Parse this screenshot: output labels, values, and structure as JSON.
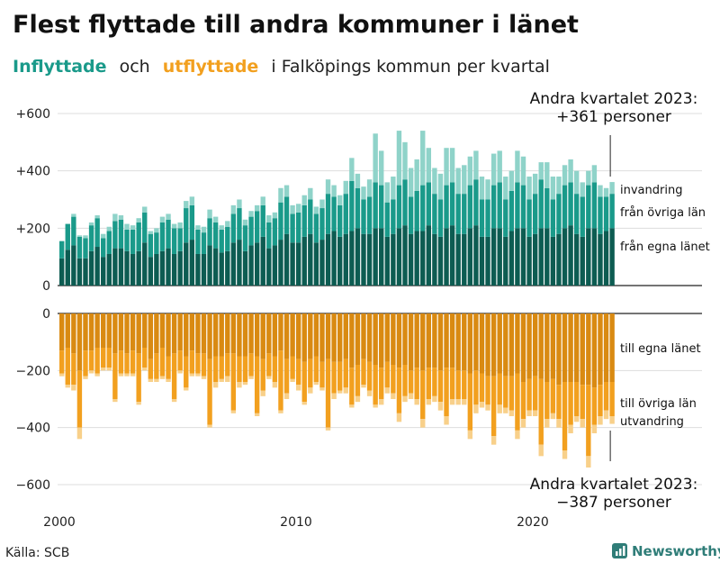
{
  "title": "Flest flyttade till andra kommuner i länet",
  "subtitle": {
    "part1": "Inflyttade",
    "part2": "och",
    "part3": "utflyttade",
    "part4": "i Falköpings kommun per kvartal"
  },
  "source": "Källa: SCB",
  "brand": "Newsworthy",
  "colors": {
    "in_egna": "#0d5c52",
    "in_ovriga": "#1a9a8a",
    "in_invandring": "#8fd3c9",
    "out_egna": "#d98a12",
    "out_ovriga": "#f2a01f",
    "out_utvandring": "#f8d08a",
    "grid": "#dddddd"
  },
  "annotations": {
    "top": {
      "line1": "Andra kvartalet 2023:",
      "line2": "+361 personer"
    },
    "bottom": {
      "line1": "Andra kvartalet 2023:",
      "line2": "−387 personer"
    }
  },
  "chart_data": {
    "type": "bar",
    "x_start": "2000 Q1",
    "x_end": "2023 Q2",
    "x_ticks": [
      "2000",
      "2010",
      "2020"
    ],
    "y_ticks_top": [
      "+600",
      "+400",
      "+200",
      "0"
    ],
    "y_ticks_bottom": [
      "0",
      "−200",
      "−400",
      "−600"
    ],
    "ylim_top": [
      0,
      600
    ],
    "ylim_bottom": [
      -600,
      0
    ],
    "segment_labels": {
      "in_invandring": "invandring",
      "in_ovriga": "från övriga län",
      "in_egna": "från egna länet",
      "out_egna": "till egna länet",
      "out_ovriga": "till övriga län",
      "out_utvandring": "utvandring"
    },
    "inflyttade": {
      "egna": [
        95,
        125,
        140,
        95,
        95,
        120,
        135,
        100,
        110,
        130,
        130,
        120,
        110,
        120,
        150,
        100,
        110,
        120,
        130,
        110,
        120,
        150,
        160,
        110,
        110,
        140,
        130,
        115,
        120,
        150,
        160,
        120,
        140,
        150,
        170,
        130,
        140,
        160,
        180,
        150,
        150,
        170,
        180,
        150,
        160,
        180,
        190,
        170,
        180,
        190,
        200,
        180,
        180,
        200,
        200,
        170,
        180,
        200,
        210,
        180,
        190,
        190,
        210,
        180,
        170,
        200,
        210,
        180,
        180,
        200,
        210,
        170,
        170,
        200,
        200,
        170,
        190,
        200,
        200,
        170,
        180,
        200,
        200,
        170,
        180,
        200,
        210,
        180,
        170,
        200,
        200,
        180,
        190,
        200
      ],
      "ovriga": [
        60,
        90,
        100,
        75,
        70,
        90,
        100,
        65,
        80,
        95,
        100,
        75,
        85,
        100,
        105,
        80,
        75,
        100,
        100,
        90,
        80,
        120,
        120,
        85,
        75,
        95,
        90,
        80,
        85,
        100,
        110,
        90,
        100,
        110,
        110,
        90,
        95,
        130,
        130,
        100,
        105,
        110,
        120,
        100,
        110,
        140,
        120,
        110,
        140,
        175,
        140,
        120,
        130,
        160,
        150,
        120,
        120,
        150,
        160,
        130,
        140,
        160,
        150,
        140,
        130,
        150,
        150,
        140,
        140,
        150,
        160,
        130,
        130,
        150,
        160,
        130,
        140,
        160,
        150,
        130,
        140,
        170,
        140,
        130,
        140,
        150,
        150,
        140,
        140,
        150,
        160,
        130,
        120,
        120
      ],
      "invandring": [
        0,
        0,
        10,
        5,
        10,
        10,
        10,
        15,
        15,
        25,
        15,
        20,
        15,
        15,
        20,
        10,
        15,
        20,
        20,
        15,
        20,
        25,
        30,
        15,
        20,
        30,
        20,
        15,
        20,
        30,
        30,
        20,
        20,
        20,
        30,
        25,
        20,
        50,
        40,
        30,
        30,
        35,
        40,
        25,
        30,
        50,
        40,
        35,
        45,
        80,
        50,
        45,
        60,
        170,
        120,
        70,
        80,
        190,
        130,
        100,
        110,
        190,
        120,
        90,
        90,
        130,
        120,
        90,
        100,
        100,
        100,
        80,
        70,
        110,
        110,
        80,
        70,
        110,
        100,
        80,
        70,
        60,
        90,
        80,
        60,
        70,
        80,
        80,
        50,
        50,
        60,
        40,
        30,
        41
      ]
    },
    "utflyttade": {
      "egna": [
        130,
        120,
        140,
        200,
        130,
        130,
        120,
        120,
        120,
        140,
        130,
        140,
        130,
        140,
        120,
        160,
        140,
        120,
        150,
        140,
        130,
        150,
        130,
        140,
        140,
        160,
        150,
        150,
        140,
        140,
        150,
        150,
        140,
        150,
        160,
        140,
        150,
        130,
        160,
        150,
        160,
        170,
        160,
        150,
        170,
        160,
        170,
        170,
        160,
        190,
        180,
        160,
        170,
        180,
        190,
        170,
        180,
        190,
        180,
        200,
        190,
        200,
        190,
        190,
        200,
        190,
        190,
        200,
        200,
        210,
        200,
        210,
        220,
        220,
        210,
        220,
        220,
        210,
        240,
        230,
        220,
        230,
        240,
        230,
        250,
        240,
        240,
        240,
        250,
        250,
        260,
        250,
        240,
        240
      ],
      "ovriga": [
        80,
        130,
        110,
        200,
        90,
        70,
        90,
        70,
        70,
        160,
        80,
        70,
        80,
        170,
        70,
        70,
        90,
        100,
        80,
        160,
        70,
        110,
        80,
        70,
        80,
        230,
        90,
        80,
        80,
        200,
        90,
        90,
        80,
        200,
        110,
        80,
        90,
        210,
        120,
        80,
        90,
        140,
        100,
        90,
        90,
        240,
        110,
        100,
        100,
        130,
        110,
        90,
        100,
        140,
        110,
        90,
        100,
        160,
        110,
        80,
        110,
        170,
        110,
        100,
        110,
        170,
        110,
        100,
        100,
        200,
        120,
        100,
        100,
        210,
        110,
        110,
        120,
        200,
        130,
        110,
        120,
        230,
        130,
        120,
        120,
        240,
        150,
        120,
        120,
        250,
        130,
        110,
        100,
        120
      ],
      "utvandring": [
        10,
        10,
        20,
        40,
        10,
        10,
        10,
        10,
        10,
        10,
        10,
        10,
        10,
        10,
        10,
        10,
        10,
        10,
        10,
        10,
        10,
        10,
        10,
        10,
        10,
        10,
        20,
        10,
        20,
        10,
        20,
        10,
        10,
        10,
        20,
        10,
        20,
        10,
        20,
        10,
        20,
        10,
        20,
        10,
        10,
        10,
        20,
        10,
        20,
        10,
        20,
        10,
        20,
        10,
        20,
        20,
        20,
        30,
        20,
        20,
        20,
        30,
        20,
        20,
        30,
        30,
        20,
        20,
        20,
        30,
        30,
        20,
        20,
        30,
        30,
        20,
        20,
        30,
        30,
        20,
        20,
        40,
        30,
        20,
        30,
        30,
        30,
        20,
        30,
        40,
        30,
        30,
        30,
        27
      ]
    }
  }
}
